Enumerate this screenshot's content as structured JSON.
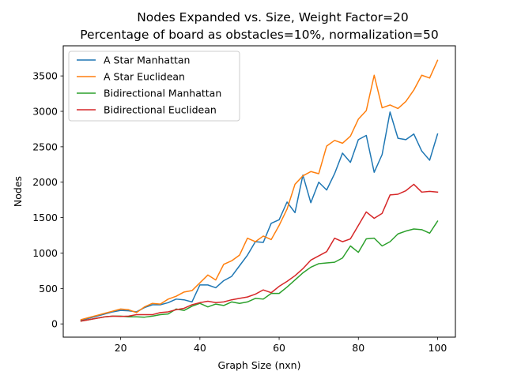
{
  "chart_data": {
    "type": "line",
    "title_lines": [
      "Nodes Expanded vs. Size, Weight Factor=20",
      "Percentage of board as obstacles=10%, normalization=50"
    ],
    "xlabel": "Graph Size (nxn)",
    "ylabel": "Nodes",
    "xlim": [
      5.5,
      104.5
    ],
    "ylim": [
      -187,
      3925
    ],
    "x_ticks": [
      20,
      40,
      60,
      80,
      100
    ],
    "x_tick_labels": [
      "20",
      "40",
      "60",
      "80",
      "100"
    ],
    "y_ticks": [
      0,
      500,
      1000,
      1500,
      2000,
      2500,
      3000,
      3500
    ],
    "y_tick_labels": [
      "0",
      "500",
      "1000",
      "1500",
      "2000",
      "2500",
      "3000",
      "3500"
    ],
    "grid": false,
    "legend_position": "top-left",
    "x": [
      10,
      12,
      14,
      16,
      18,
      20,
      22,
      24,
      26,
      28,
      30,
      32,
      34,
      36,
      38,
      40,
      42,
      44,
      46,
      48,
      50,
      52,
      54,
      56,
      58,
      60,
      62,
      64,
      66,
      68,
      70,
      72,
      74,
      76,
      78,
      80,
      82,
      84,
      86,
      88,
      90,
      92,
      94,
      96,
      98,
      100
    ],
    "series": [
      {
        "name": "A Star Manhattan",
        "color": "#1f77b4",
        "values": [
          50,
          80,
          110,
          140,
          170,
          190,
          185,
          170,
          230,
          270,
          270,
          300,
          350,
          340,
          310,
          550,
          550,
          510,
          610,
          670,
          820,
          970,
          1160,
          1150,
          1420,
          1470,
          1720,
          1570,
          2100,
          1710,
          2000,
          1890,
          2120,
          2410,
          2280,
          2600,
          2660,
          2140,
          2390,
          2990,
          2620,
          2600,
          2680,
          2440,
          2310,
          2680
        ]
      },
      {
        "name": "A Star Euclidean",
        "color": "#ff7f0e",
        "values": [
          60,
          90,
          120,
          150,
          180,
          210,
          200,
          160,
          240,
          290,
          280,
          350,
          390,
          450,
          470,
          580,
          690,
          620,
          840,
          890,
          970,
          1210,
          1160,
          1240,
          1190,
          1390,
          1620,
          1970,
          2090,
          2150,
          2120,
          2510,
          2590,
          2550,
          2650,
          2890,
          3010,
          3510,
          3050,
          3090,
          3040,
          3140,
          3300,
          3510,
          3470,
          3720
        ]
      },
      {
        "name": "Bidirectional Manhattan",
        "color": "#2ca02c",
        "values": [
          40,
          60,
          80,
          100,
          110,
          110,
          100,
          100,
          95,
          110,
          130,
          140,
          210,
          190,
          250,
          290,
          240,
          280,
          260,
          310,
          290,
          310,
          360,
          350,
          430,
          430,
          520,
          620,
          720,
          800,
          850,
          860,
          870,
          930,
          1100,
          1010,
          1200,
          1210,
          1100,
          1160,
          1270,
          1310,
          1340,
          1330,
          1280,
          1450
        ]
      },
      {
        "name": "Bidirectional Euclidean",
        "color": "#d62728",
        "values": [
          40,
          60,
          80,
          100,
          110,
          105,
          110,
          130,
          130,
          130,
          160,
          170,
          200,
          220,
          270,
          300,
          320,
          300,
          310,
          340,
          360,
          380,
          420,
          480,
          440,
          530,
          600,
          680,
          780,
          900,
          960,
          1020,
          1210,
          1160,
          1200,
          1390,
          1580,
          1490,
          1560,
          1820,
          1830,
          1880,
          1970,
          1860,
          1870,
          1860
        ]
      }
    ]
  }
}
